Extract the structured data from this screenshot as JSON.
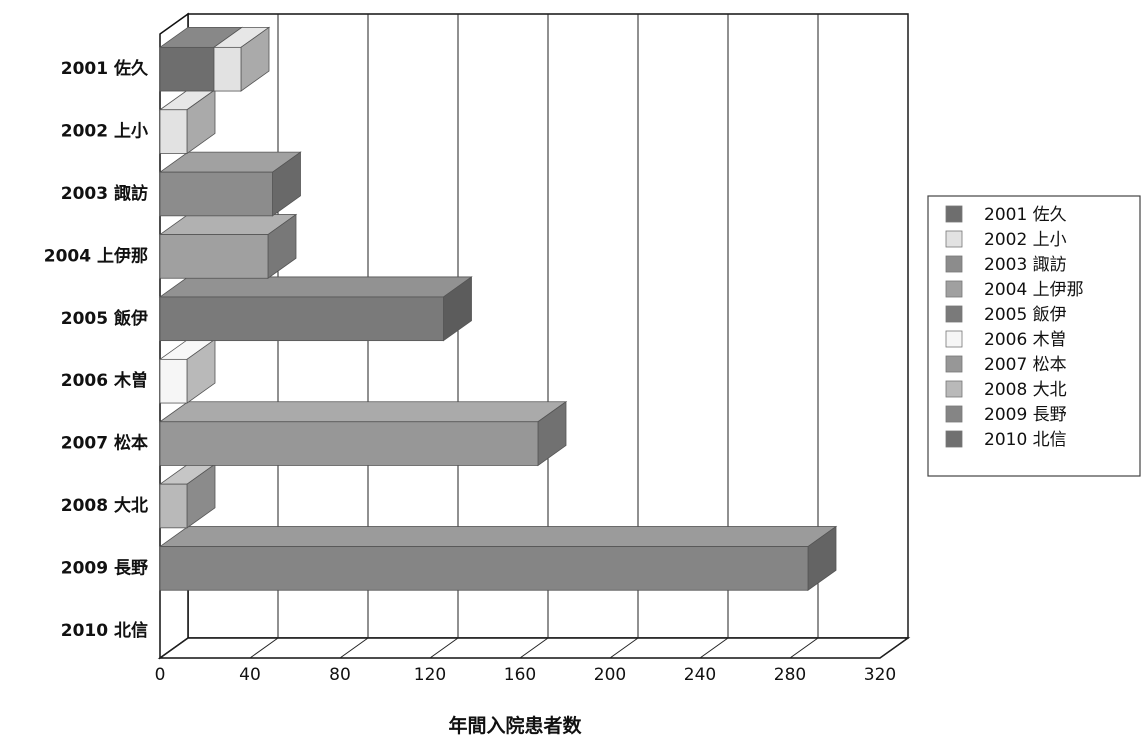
{
  "chart_data": {
    "type": "bar",
    "orientation": "horizontal",
    "three_d": true,
    "categories": [
      "2001 佐久",
      "2002 上小",
      "2003 諏訪",
      "2004 上伊那",
      "2005 飯伊",
      "2006 木曽",
      "2007 松本",
      "2008 大北",
      "2009 長野",
      "2010 北信"
    ],
    "series": [
      {
        "values": [
          24,
          12,
          50,
          48,
          126,
          12,
          168,
          12,
          288,
          0
        ],
        "segments": [
          {
            "category": "2001 佐久",
            "value": 24,
            "color": "#6e6e6e"
          },
          {
            "category": "2001 佐久",
            "value": 12,
            "color": "#e2e2e2"
          }
        ]
      }
    ],
    "bar_colors": [
      "#6e6e6e",
      "#e2e2e2",
      "#8c8c8c",
      "#a0a0a0",
      "#7a7a7a",
      "#f6f6f6",
      "#979797",
      "#b9b9b9",
      "#858585",
      "#707070"
    ],
    "first_bar_segments": [
      24,
      12
    ],
    "first_bar_segment_colors": [
      "#6e6e6e",
      "#e2e2e2"
    ],
    "title": "",
    "xlabel": "年間入院患者数",
    "ylabel": "",
    "xlim": [
      0,
      320
    ],
    "xticks": [
      0,
      40,
      80,
      120,
      160,
      200,
      240,
      280,
      320
    ],
    "grid": "vertical",
    "legend": {
      "placement": "right",
      "entries": [
        "2001 佐久",
        "2002 上小",
        "2003 諏訪",
        "2004 上伊那",
        "2005 飯伊",
        "2006 木曽",
        "2007 松本",
        "2008 大北",
        "2009 長野",
        "2010 北信"
      ],
      "colors": [
        "#6e6e6e",
        "#e2e2e2",
        "#8c8c8c",
        "#a0a0a0",
        "#7a7a7a",
        "#f6f6f6",
        "#979797",
        "#b9b9b9",
        "#858585",
        "#707070"
      ]
    }
  }
}
